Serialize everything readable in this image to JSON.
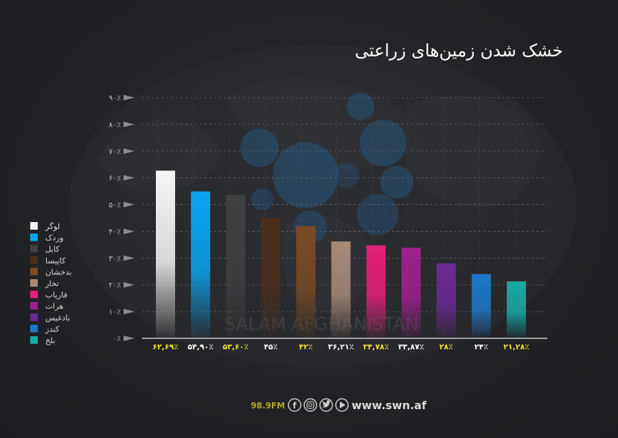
{
  "chart_data": {
    "type": "bar",
    "title": "خشک شدن زمین‌های زراعتی",
    "xlabel": "",
    "ylabel": "",
    "ylim": [
      0,
      90
    ],
    "y_ticks": [
      "۰٪",
      "۱۰٪",
      "۲۰٪",
      "۳۰٪",
      "۴۰٪",
      "۵۰٪",
      "۶۰٪",
      "۷۰٪",
      "۸۰٪",
      "۹۰٪"
    ],
    "grid": true,
    "legend_position": "left",
    "categories": [
      "لوگر",
      "وردک",
      "کابل",
      "کاپیسا",
      "بدخشان",
      "تخار",
      "فاریاب",
      "هرات",
      "بادغیس",
      "کندز",
      "بلخ"
    ],
    "values": [
      62.69,
      54.9,
      53.6,
      45,
      42,
      36.21,
      34.78,
      33.87,
      28,
      24,
      21.28
    ],
    "value_labels": [
      "۶۲,۶۹٪",
      "۵۴,۹۰٪",
      "۵۳,۶۰٪",
      "۴۵٪",
      "۴۲٪",
      "۳۶,۲۱٪",
      "۳۴,۷۸٪",
      "۳۳,۸۷٪",
      "۲۸٪",
      "۲۴٪",
      "۲۱,۲۸٪"
    ],
    "label_colors": [
      "#f0e130",
      "#ffffff",
      "#f0e130",
      "#ffffff",
      "#f0e130",
      "#ffffff",
      "#f0e130",
      "#ffffff",
      "#f0e130",
      "#ffffff",
      "#f0e130"
    ],
    "colors": [
      "#f5f5f5",
      "#0aa4f0",
      "#404040",
      "#4a2e1c",
      "#7a4b24",
      "#a88a78",
      "#e5207a",
      "#a0208e",
      "#6a2a94",
      "#1e78c8",
      "#18aaa4"
    ]
  },
  "watermark": "SALAM AFGHANISTAN",
  "footer": {
    "frequency": "98.9FM",
    "website": "www.swn.af",
    "social_icons": [
      "facebook-icon",
      "instagram-icon",
      "twitter-icon",
      "youtube-icon"
    ]
  }
}
